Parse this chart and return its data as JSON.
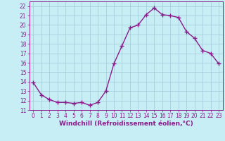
{
  "x": [
    0,
    1,
    2,
    3,
    4,
    5,
    6,
    7,
    8,
    9,
    10,
    11,
    12,
    13,
    14,
    15,
    16,
    17,
    18,
    19,
    20,
    21,
    22,
    23
  ],
  "y": [
    13.9,
    12.6,
    12.1,
    11.8,
    11.8,
    11.7,
    11.8,
    11.5,
    11.8,
    13.0,
    15.9,
    17.8,
    19.7,
    20.0,
    21.1,
    21.8,
    21.1,
    21.0,
    20.8,
    19.3,
    18.6,
    17.3,
    17.0,
    15.9
  ],
  "line_color": "#8b1a8b",
  "marker": "+",
  "marker_size": 4,
  "background_color": "#c8eef5",
  "grid_color": "#a0c8d8",
  "axis_color": "#8b1a8b",
  "tick_color": "#8b1a8b",
  "xlabel": "Windchill (Refroidissement éolien,°C)",
  "xlabel_fontsize": 6.5,
  "ylim": [
    11,
    22.5
  ],
  "yticks": [
    11,
    12,
    13,
    14,
    15,
    16,
    17,
    18,
    19,
    20,
    21,
    22
  ],
  "xticks": [
    0,
    1,
    2,
    3,
    4,
    5,
    6,
    7,
    8,
    9,
    10,
    11,
    12,
    13,
    14,
    15,
    16,
    17,
    18,
    19,
    20,
    21,
    22,
    23
  ],
  "tick_fontsize": 5.5,
  "line_width": 1.0,
  "marker_edge_width": 1.0
}
